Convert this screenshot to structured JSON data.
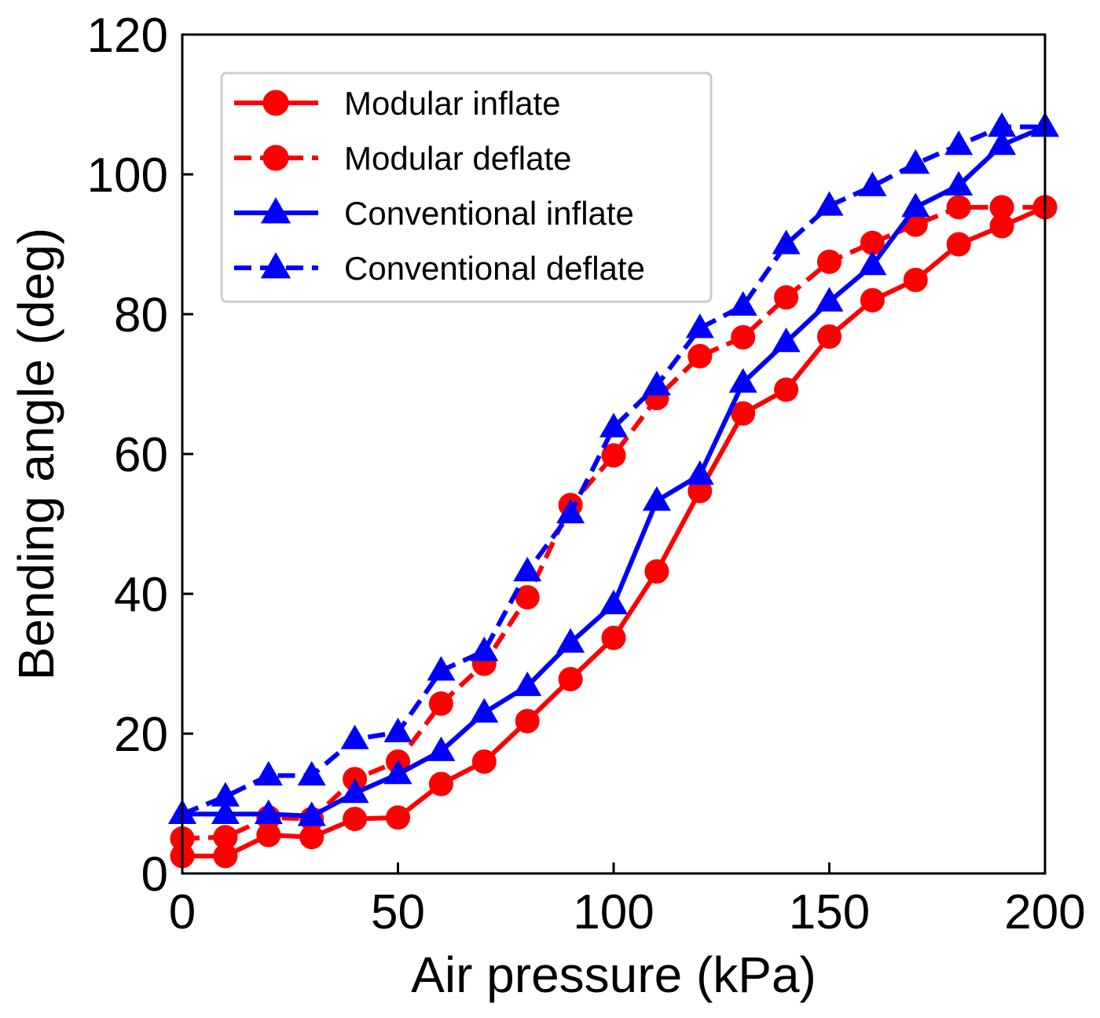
{
  "chart_data": {
    "type": "line",
    "title": "",
    "xlabel": "Air pressure (kPa)",
    "ylabel": "Bending angle (deg)",
    "xlim": [
      0,
      200
    ],
    "ylim": [
      0,
      120
    ],
    "xticks": [
      0,
      50,
      100,
      150,
      200
    ],
    "yticks": [
      0,
      20,
      40,
      60,
      80,
      100,
      120
    ],
    "grid": false,
    "legend_position": "top-left",
    "x": [
      0,
      10,
      20,
      30,
      40,
      50,
      60,
      70,
      80,
      90,
      100,
      110,
      120,
      130,
      140,
      150,
      160,
      170,
      180,
      190,
      200
    ],
    "series": [
      {
        "name": "Modular inflate",
        "color": "#ff0000",
        "style": "solid",
        "marker": "circle",
        "values": [
          2.5,
          2.5,
          5.5,
          5.2,
          7.8,
          8.0,
          12.8,
          16.0,
          21.8,
          27.8,
          33.7,
          43.2,
          54.7,
          65.8,
          69.2,
          76.8,
          82.0,
          84.9,
          90.0,
          92.6,
          95.3
        ]
      },
      {
        "name": "Modular deflate",
        "color": "#ff0000",
        "style": "dashed",
        "marker": "circle",
        "values": [
          5.0,
          5.2,
          8.0,
          7.8,
          13.5,
          16.0,
          24.3,
          30.0,
          39.5,
          52.7,
          59.8,
          68.0,
          74.0,
          76.7,
          82.4,
          87.5,
          90.2,
          92.8,
          95.3,
          95.3,
          95.3
        ]
      },
      {
        "name": "Conventional inflate",
        "color": "#0000ff",
        "style": "solid",
        "marker": "triangle",
        "values": [
          8.5,
          8.5,
          8.5,
          8.2,
          11.5,
          14.2,
          17.5,
          23.0,
          26.8,
          33.0,
          38.5,
          53.3,
          57.0,
          70.2,
          76.0,
          81.8,
          87.0,
          95.3,
          98.4,
          104.2,
          106.8
        ]
      },
      {
        "name": "Conventional deflate",
        "color": "#0000ff",
        "style": "dashed",
        "marker": "triangle",
        "values": [
          8.5,
          11.0,
          14.0,
          14.0,
          19.2,
          20.2,
          29.0,
          31.8,
          43.2,
          51.5,
          63.8,
          69.8,
          78.0,
          81.2,
          90.0,
          95.5,
          98.3,
          101.5,
          104.2,
          106.8,
          106.8
        ]
      }
    ]
  }
}
